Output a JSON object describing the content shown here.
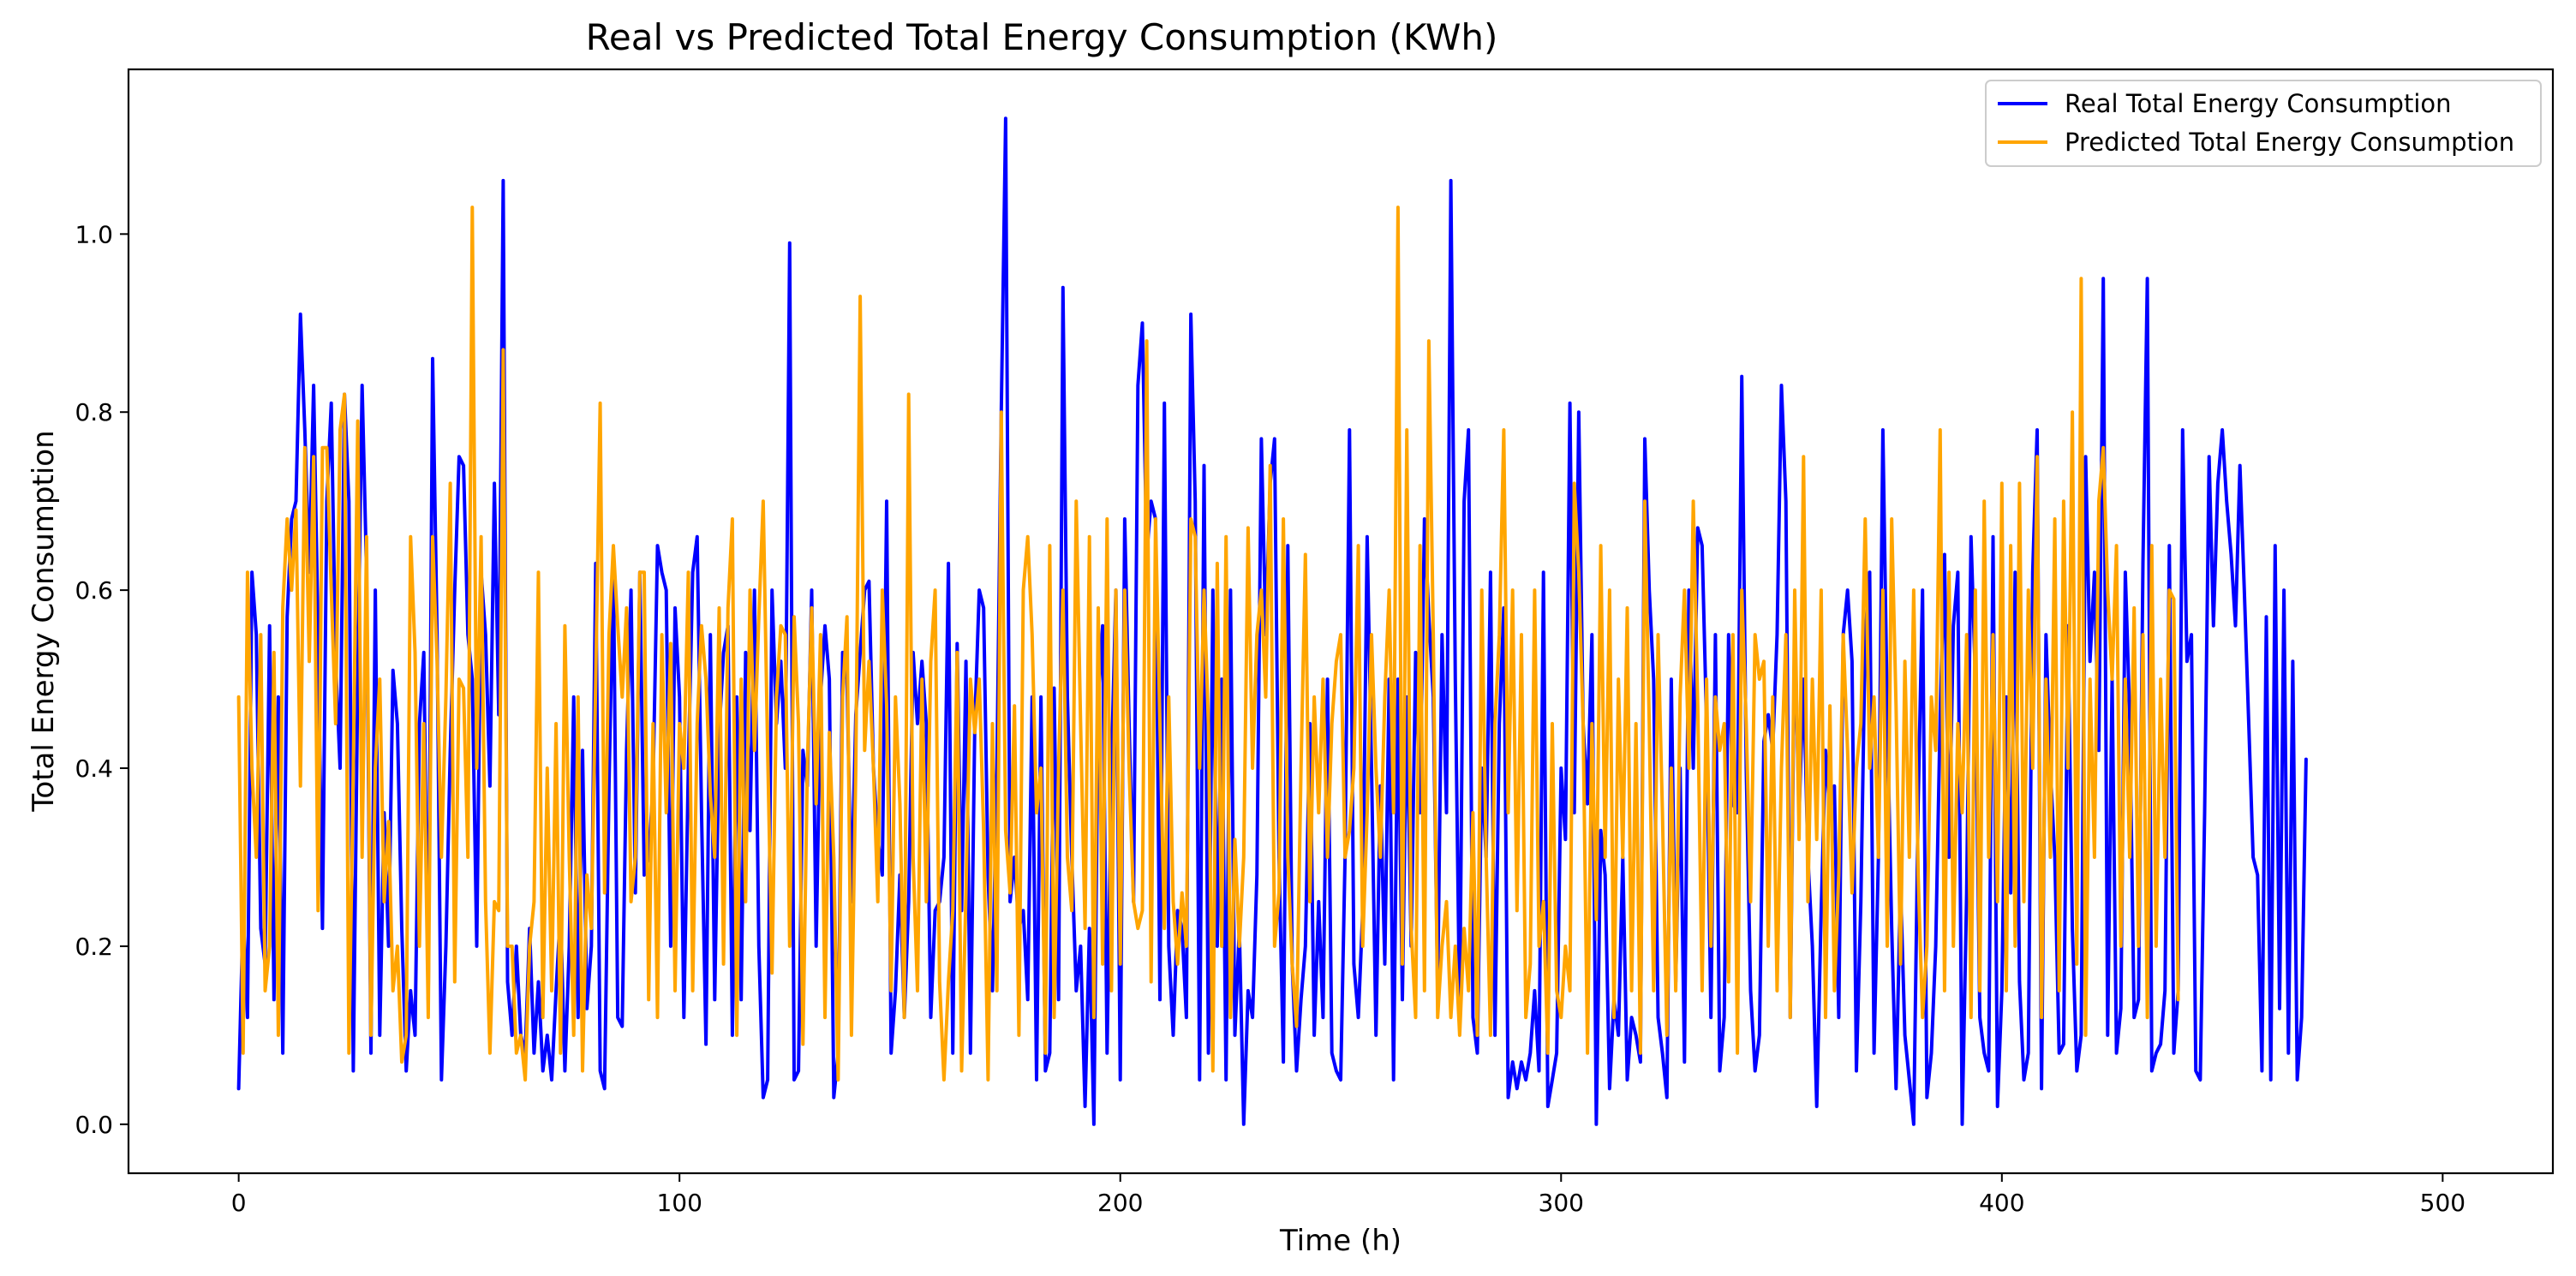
{
  "chart_data": {
    "type": "line",
    "title": "Real vs Predicted Total Energy Consumption (KWh)",
    "xlabel": "Time (h)",
    "ylabel": "Total Energy Consumption",
    "xlim": [
      -25,
      525
    ],
    "ylim": [
      -0.055,
      1.185
    ],
    "x_ticks": [
      0,
      100,
      200,
      300,
      400,
      500
    ],
    "x_tick_labels": [
      "0",
      "100",
      "200",
      "300",
      "400",
      "500"
    ],
    "y_ticks": [
      0.0,
      0.2,
      0.4,
      0.6,
      0.8,
      1.0
    ],
    "y_tick_labels": [
      "0.0",
      "0.2",
      "0.4",
      "0.6",
      "0.8",
      "1.0"
    ],
    "grid": false,
    "legend_position": "top-right",
    "x_start": 0,
    "x_step": 1,
    "series": [
      {
        "name": "Real Total Energy Consumption",
        "color": "#0000ff",
        "values": [
          0.04,
          0.24,
          0.12,
          0.62,
          0.55,
          0.22,
          0.18,
          0.56,
          0.14,
          0.48,
          0.08,
          0.57,
          0.68,
          0.7,
          0.91,
          0.78,
          0.62,
          0.83,
          0.55,
          0.22,
          0.7,
          0.81,
          0.52,
          0.4,
          0.82,
          0.7,
          0.06,
          0.5,
          0.83,
          0.62,
          0.08,
          0.6,
          0.1,
          0.35,
          0.2,
          0.51,
          0.45,
          0.22,
          0.06,
          0.15,
          0.1,
          0.45,
          0.53,
          0.14,
          0.86,
          0.55,
          0.05,
          0.2,
          0.42,
          0.6,
          0.75,
          0.74,
          0.55,
          0.5,
          0.2,
          0.62,
          0.55,
          0.38,
          0.72,
          0.46,
          1.06,
          0.16,
          0.1,
          0.2,
          0.1,
          0.08,
          0.22,
          0.08,
          0.16,
          0.06,
          0.1,
          0.05,
          0.15,
          0.24,
          0.06,
          0.2,
          0.48,
          0.12,
          0.42,
          0.13,
          0.2,
          0.63,
          0.06,
          0.04,
          0.38,
          0.63,
          0.12,
          0.11,
          0.42,
          0.6,
          0.26,
          0.62,
          0.28,
          0.3,
          0.38,
          0.65,
          0.62,
          0.6,
          0.2,
          0.58,
          0.48,
          0.12,
          0.4,
          0.62,
          0.66,
          0.35,
          0.09,
          0.55,
          0.14,
          0.44,
          0.53,
          0.56,
          0.1,
          0.48,
          0.14,
          0.53,
          0.33,
          0.6,
          0.2,
          0.03,
          0.05,
          0.6,
          0.45,
          0.52,
          0.4,
          0.99,
          0.05,
          0.06,
          0.42,
          0.38,
          0.6,
          0.2,
          0.48,
          0.56,
          0.5,
          0.03,
          0.08,
          0.53,
          0.5,
          0.25,
          0.46,
          0.53,
          0.6,
          0.61,
          0.4,
          0.32,
          0.28,
          0.7,
          0.08,
          0.15,
          0.28,
          0.12,
          0.25,
          0.53,
          0.45,
          0.52,
          0.45,
          0.12,
          0.24,
          0.25,
          0.3,
          0.63,
          0.08,
          0.54,
          0.24,
          0.52,
          0.08,
          0.45,
          0.6,
          0.58,
          0.28,
          0.15,
          0.4,
          0.8,
          1.13,
          0.25,
          0.3,
          0.22,
          0.24,
          0.14,
          0.48,
          0.05,
          0.48,
          0.06,
          0.08,
          0.49,
          0.14,
          0.94,
          0.48,
          0.3,
          0.15,
          0.2,
          0.02,
          0.22,
          0.0,
          0.48,
          0.56,
          0.08,
          0.4,
          0.6,
          0.05,
          0.68,
          0.45,
          0.25,
          0.83,
          0.9,
          0.64,
          0.7,
          0.68,
          0.14,
          0.81,
          0.2,
          0.1,
          0.24,
          0.22,
          0.12,
          0.91,
          0.7,
          0.05,
          0.74,
          0.08,
          0.6,
          0.2,
          0.5,
          0.05,
          0.6,
          0.1,
          0.22,
          0.0,
          0.15,
          0.12,
          0.28,
          0.77,
          0.55,
          0.72,
          0.77,
          0.3,
          0.07,
          0.65,
          0.18,
          0.06,
          0.14,
          0.2,
          0.45,
          0.1,
          0.25,
          0.12,
          0.5,
          0.08,
          0.06,
          0.05,
          0.3,
          0.78,
          0.18,
          0.12,
          0.24,
          0.66,
          0.4,
          0.1,
          0.38,
          0.18,
          0.5,
          0.05,
          0.5,
          0.14,
          0.48,
          0.2,
          0.53,
          0.35,
          0.68,
          0.57,
          0.48,
          0.15,
          0.55,
          0.35,
          1.06,
          0.5,
          0.12,
          0.7,
          0.78,
          0.12,
          0.08,
          0.4,
          0.3,
          0.62,
          0.1,
          0.45,
          0.58,
          0.03,
          0.07,
          0.04,
          0.07,
          0.05,
          0.08,
          0.15,
          0.06,
          0.62,
          0.02,
          0.05,
          0.08,
          0.4,
          0.32,
          0.81,
          0.35,
          0.8,
          0.45,
          0.36,
          0.55,
          0.0,
          0.33,
          0.28,
          0.04,
          0.14,
          0.1,
          0.3,
          0.05,
          0.12,
          0.1,
          0.07,
          0.77,
          0.6,
          0.5,
          0.12,
          0.08,
          0.03,
          0.5,
          0.16,
          0.4,
          0.07,
          0.6,
          0.4,
          0.67,
          0.65,
          0.45,
          0.12,
          0.55,
          0.06,
          0.12,
          0.55,
          0.36,
          0.35,
          0.84,
          0.4,
          0.15,
          0.06,
          0.1,
          0.43,
          0.46,
          0.42,
          0.55,
          0.83,
          0.7,
          0.12,
          0.56,
          0.35,
          0.5,
          0.3,
          0.2,
          0.02,
          0.24,
          0.42,
          0.35,
          0.38,
          0.12,
          0.55,
          0.6,
          0.52,
          0.06,
          0.25,
          0.55,
          0.62,
          0.08,
          0.3,
          0.78,
          0.46,
          0.22,
          0.04,
          0.27,
          0.1,
          0.05,
          0.0,
          0.36,
          0.6,
          0.03,
          0.08,
          0.2,
          0.46,
          0.64,
          0.3,
          0.56,
          0.62,
          0.0,
          0.26,
          0.66,
          0.5,
          0.12,
          0.08,
          0.06,
          0.66,
          0.02,
          0.15,
          0.48,
          0.26,
          0.62,
          0.16,
          0.05,
          0.08,
          0.62,
          0.78,
          0.04,
          0.55,
          0.4,
          0.3,
          0.08,
          0.09,
          0.56,
          0.22,
          0.06,
          0.1,
          0.75,
          0.52,
          0.62,
          0.42,
          0.95,
          0.1,
          0.5,
          0.08,
          0.13,
          0.62,
          0.46,
          0.12,
          0.14,
          0.63,
          0.95,
          0.06,
          0.08,
          0.09,
          0.15,
          0.65,
          0.08,
          0.15,
          0.78,
          0.52,
          0.55,
          0.06,
          0.05,
          0.35,
          0.75,
          0.56,
          0.72,
          0.78,
          0.7,
          0.64,
          0.56,
          0.74,
          0.6,
          0.45,
          0.3,
          0.28,
          0.06,
          0.57,
          0.05,
          0.65,
          0.13,
          0.6,
          0.08,
          0.52,
          0.05,
          0.12,
          0.41
        ]
      },
      {
        "name": "Predicted Total Energy Consumption",
        "color": "#ffa500",
        "values": [
          0.48,
          0.08,
          0.62,
          0.4,
          0.3,
          0.55,
          0.15,
          0.2,
          0.53,
          0.1,
          0.58,
          0.68,
          0.6,
          0.69,
          0.38,
          0.76,
          0.52,
          0.75,
          0.24,
          0.76,
          0.76,
          0.6,
          0.45,
          0.78,
          0.82,
          0.08,
          0.4,
          0.79,
          0.3,
          0.66,
          0.1,
          0.4,
          0.5,
          0.25,
          0.34,
          0.15,
          0.2,
          0.07,
          0.1,
          0.66,
          0.53,
          0.2,
          0.45,
          0.12,
          0.66,
          0.52,
          0.3,
          0.48,
          0.72,
          0.16,
          0.5,
          0.49,
          0.3,
          1.03,
          0.4,
          0.66,
          0.25,
          0.08,
          0.25,
          0.24,
          0.87,
          0.2,
          0.2,
          0.08,
          0.1,
          0.05,
          0.2,
          0.25,
          0.62,
          0.12,
          0.4,
          0.15,
          0.45,
          0.08,
          0.56,
          0.3,
          0.1,
          0.48,
          0.06,
          0.28,
          0.22,
          0.5,
          0.81,
          0.26,
          0.55,
          0.65,
          0.56,
          0.48,
          0.58,
          0.25,
          0.3,
          0.62,
          0.62,
          0.14,
          0.45,
          0.12,
          0.55,
          0.35,
          0.54,
          0.15,
          0.45,
          0.4,
          0.62,
          0.15,
          0.45,
          0.56,
          0.5,
          0.37,
          0.3,
          0.58,
          0.18,
          0.58,
          0.68,
          0.1,
          0.5,
          0.25,
          0.6,
          0.42,
          0.57,
          0.7,
          0.42,
          0.17,
          0.48,
          0.56,
          0.55,
          0.2,
          0.57,
          0.45,
          0.09,
          0.4,
          0.58,
          0.36,
          0.55,
          0.12,
          0.44,
          0.3,
          0.05,
          0.48,
          0.57,
          0.1,
          0.4,
          0.93,
          0.42,
          0.52,
          0.4,
          0.25,
          0.6,
          0.47,
          0.15,
          0.48,
          0.36,
          0.12,
          0.82,
          0.3,
          0.15,
          0.5,
          0.25,
          0.52,
          0.6,
          0.16,
          0.05,
          0.16,
          0.24,
          0.53,
          0.06,
          0.26,
          0.5,
          0.44,
          0.5,
          0.33,
          0.05,
          0.45,
          0.15,
          0.8,
          0.33,
          0.26,
          0.47,
          0.1,
          0.6,
          0.66,
          0.55,
          0.35,
          0.4,
          0.08,
          0.65,
          0.12,
          0.4,
          0.6,
          0.3,
          0.24,
          0.7,
          0.45,
          0.22,
          0.66,
          0.12,
          0.58,
          0.18,
          0.68,
          0.15,
          0.6,
          0.18,
          0.6,
          0.4,
          0.25,
          0.22,
          0.24,
          0.88,
          0.16,
          0.68,
          0.45,
          0.22,
          0.48,
          0.25,
          0.18,
          0.26,
          0.2,
          0.68,
          0.66,
          0.4,
          0.6,
          0.45,
          0.06,
          0.63,
          0.2,
          0.66,
          0.12,
          0.32,
          0.2,
          0.3,
          0.67,
          0.4,
          0.55,
          0.6,
          0.48,
          0.74,
          0.2,
          0.26,
          0.68,
          0.3,
          0.18,
          0.11,
          0.4,
          0.64,
          0.25,
          0.48,
          0.35,
          0.5,
          0.3,
          0.45,
          0.52,
          0.55,
          0.3,
          0.33,
          0.4,
          0.65,
          0.2,
          0.35,
          0.55,
          0.4,
          0.3,
          0.48,
          0.6,
          0.35,
          1.03,
          0.18,
          0.78,
          0.22,
          0.12,
          0.65,
          0.15,
          0.88,
          0.55,
          0.12,
          0.2,
          0.25,
          0.12,
          0.2,
          0.1,
          0.22,
          0.15,
          0.35,
          0.1,
          0.6,
          0.3,
          0.1,
          0.45,
          0.55,
          0.78,
          0.35,
          0.6,
          0.24,
          0.55,
          0.12,
          0.18,
          0.6,
          0.2,
          0.25,
          0.08,
          0.45,
          0.15,
          0.12,
          0.2,
          0.15,
          0.72,
          0.62,
          0.45,
          0.08,
          0.45,
          0.23,
          0.65,
          0.3,
          0.6,
          0.12,
          0.5,
          0.3,
          0.58,
          0.15,
          0.45,
          0.08,
          0.7,
          0.45,
          0.15,
          0.55,
          0.35,
          0.1,
          0.4,
          0.15,
          0.48,
          0.6,
          0.4,
          0.7,
          0.47,
          0.15,
          0.5,
          0.2,
          0.48,
          0.42,
          0.45,
          0.16,
          0.55,
          0.08,
          0.6,
          0.45,
          0.25,
          0.55,
          0.5,
          0.52,
          0.2,
          0.48,
          0.15,
          0.4,
          0.55,
          0.12,
          0.6,
          0.32,
          0.75,
          0.25,
          0.5,
          0.32,
          0.6,
          0.12,
          0.47,
          0.15,
          0.28,
          0.55,
          0.42,
          0.26,
          0.4,
          0.45,
          0.68,
          0.4,
          0.48,
          0.3,
          0.6,
          0.2,
          0.68,
          0.47,
          0.18,
          0.52,
          0.3,
          0.6,
          0.28,
          0.12,
          0.2,
          0.48,
          0.42,
          0.78,
          0.15,
          0.62,
          0.2,
          0.45,
          0.35,
          0.55,
          0.12,
          0.6,
          0.15,
          0.7,
          0.3,
          0.55,
          0.25,
          0.72,
          0.15,
          0.65,
          0.2,
          0.72,
          0.25,
          0.6,
          0.4,
          0.75,
          0.12,
          0.5,
          0.3,
          0.68,
          0.15,
          0.7,
          0.4,
          0.8,
          0.18,
          0.95,
          0.1,
          0.5,
          0.3,
          0.7,
          0.76,
          0.6,
          0.5,
          0.65,
          0.2,
          0.5,
          0.3,
          0.58,
          0.2,
          0.55,
          0.12,
          0.65,
          0.2,
          0.5,
          0.3,
          0.6,
          0.59,
          0.14
        ]
      }
    ]
  }
}
